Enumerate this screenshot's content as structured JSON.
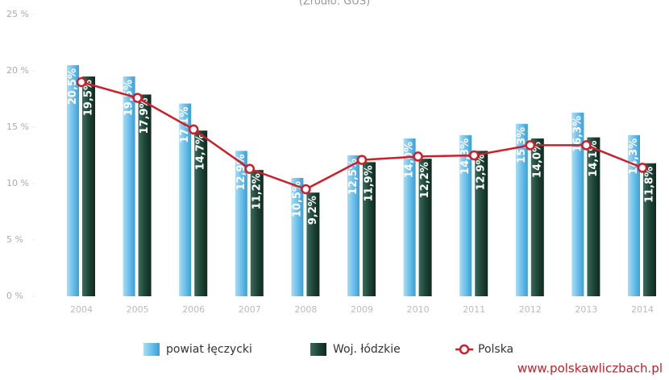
{
  "chart_data": {
    "type": "bar",
    "subtitle": "(Źródło: GUS)",
    "source_url": "www.polskawliczbach.pl",
    "categories": [
      "2004",
      "2005",
      "2006",
      "2007",
      "2008",
      "2009",
      "2010",
      "2011",
      "2012",
      "2013",
      "2014"
    ],
    "series": [
      {
        "name": "powiat łęczycki",
        "color": "#6cc0ea",
        "type": "bar",
        "values": [
          20.5,
          19.5,
          17.1,
          12.9,
          10.5,
          12.5,
          14.0,
          14.3,
          15.3,
          16.3,
          14.3
        ],
        "value_labels": [
          "20,5%",
          "19,5%",
          "17,1%",
          "12,9%",
          "10,5%",
          "12,5%",
          "14,0%",
          "14,3%",
          "15,3%",
          "16,3%",
          "14,3%"
        ]
      },
      {
        "name": "Woj. łódzkie",
        "color": "#1e4638",
        "type": "bar",
        "values": [
          19.5,
          17.9,
          14.7,
          11.2,
          9.2,
          11.9,
          12.2,
          12.9,
          14.0,
          14.1,
          11.8
        ],
        "value_labels": [
          "19,5%",
          "17,9%",
          "14,7%",
          "11,2%",
          "9,2%",
          "11,9%",
          "12,2%",
          "12,9%",
          "14,0%",
          "14,1%",
          "11,8%"
        ]
      },
      {
        "name": "Polska",
        "color": "#cc1f2a",
        "type": "line",
        "values": [
          19.0,
          17.6,
          14.8,
          11.3,
          9.5,
          12.1,
          12.4,
          12.5,
          13.4,
          13.4,
          11.4
        ]
      }
    ],
    "ylim": [
      0,
      25
    ],
    "yticks": [
      {
        "value": 0,
        "label": "0 %"
      },
      {
        "value": 5,
        "label": "5 %"
      },
      {
        "value": 10,
        "label": "10 %"
      },
      {
        "value": 15,
        "label": "15 %"
      },
      {
        "value": 20,
        "label": "20 %"
      },
      {
        "value": 25,
        "label": "25 %"
      }
    ],
    "legend": "bottom"
  }
}
